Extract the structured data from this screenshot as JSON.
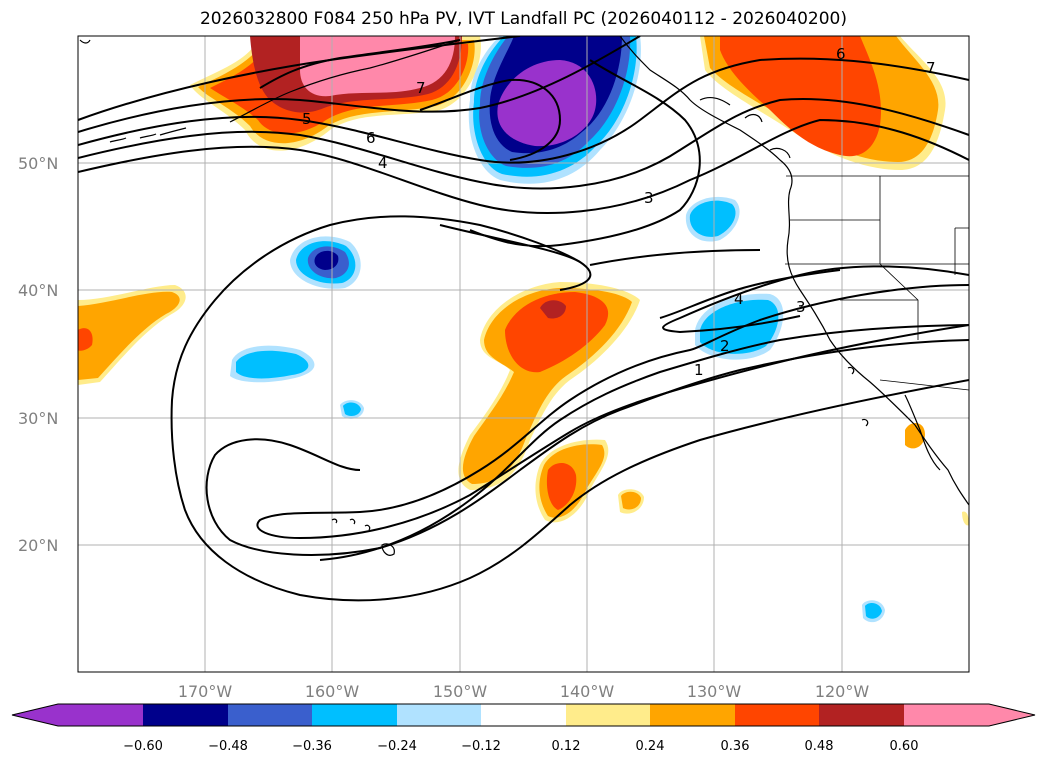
{
  "title": "2026032800 F084 250 hPa PV, IVT Landfall PC (2026040112 - 2026040200)",
  "lat_labels": [
    "50°N",
    "40°N",
    "30°N",
    "20°N"
  ],
  "lon_labels": [
    "170°W",
    "160°W",
    "150°W",
    "140°W",
    "130°W",
    "120°W"
  ],
  "contour_labels": [
    "7",
    "7",
    "6",
    "6",
    "5",
    "4",
    "4",
    "3",
    "3",
    "2",
    "1"
  ],
  "colorbar": {
    "ticks": [
      "−0.60",
      "−0.48",
      "−0.36",
      "−0.24",
      "−0.12",
      "0.12",
      "0.24",
      "0.36",
      "0.48",
      "0.60"
    ],
    "colors": [
      "#9932cc",
      "#00008b",
      "#3a5fcd",
      "#00bfff",
      "#b0e2ff",
      "#ffffff",
      "#ffec8b",
      "#ffa500",
      "#ff4500",
      "#b22222",
      "#ff88aa",
      "#ff88aa"
    ]
  },
  "colors": {
    "purple": "#9932cc",
    "navy": "#00008b",
    "royal": "#3a5fcd",
    "sky": "#00bfff",
    "pale_blue": "#b0e2ff",
    "yellow": "#ffec8b",
    "orange": "#ffa500",
    "red_orange": "#ff4500",
    "firebrick": "#b22222",
    "pink": "#ff88aa"
  }
}
